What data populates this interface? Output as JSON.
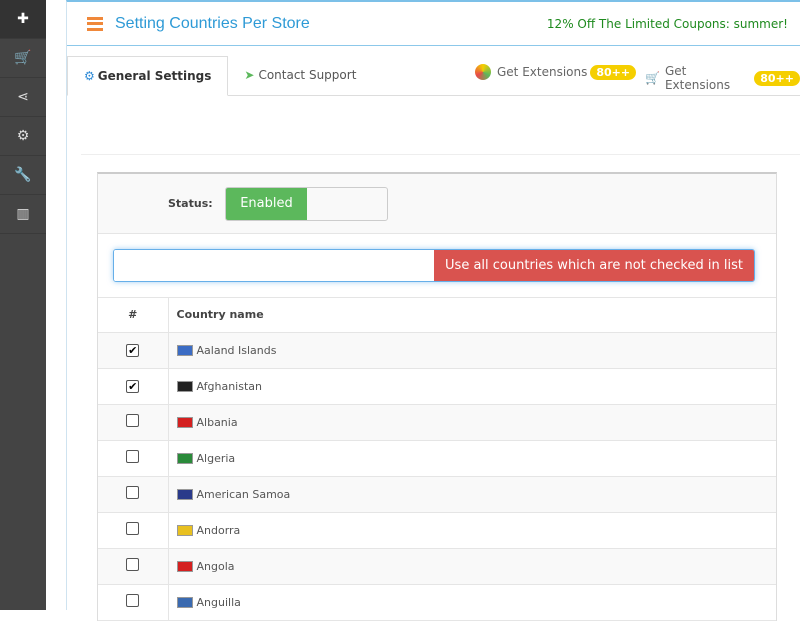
{
  "sidebar": {
    "items": [
      {
        "icon": "puzzle-icon",
        "glyph": "✚"
      },
      {
        "icon": "cart-icon",
        "glyph": "🛒"
      },
      {
        "icon": "share-icon",
        "glyph": "⋖"
      },
      {
        "icon": "gear-icon",
        "glyph": "⚙"
      },
      {
        "icon": "wrench-icon",
        "glyph": "🔧"
      },
      {
        "icon": "bar-chart-icon",
        "glyph": "▥"
      }
    ]
  },
  "header": {
    "title": "Setting Countries Per Store",
    "coupon": "12% Off The Limited Coupons: summer!"
  },
  "tabs": [
    {
      "label": "General Settings",
      "icon": "gear-icon"
    },
    {
      "label": "Contact Support",
      "icon": "paper-plane-icon"
    }
  ],
  "extensions": [
    {
      "label": "Get Extensions",
      "badge": "80++"
    },
    {
      "label": "Get Extensions",
      "badge": "80++"
    }
  ],
  "status": {
    "label": "Status:",
    "value": "Enabled"
  },
  "search": {
    "value": "",
    "button": "Use all countries which are not checked in list"
  },
  "table": {
    "headers": [
      "#",
      "Country name"
    ],
    "rows": [
      {
        "checked": true,
        "name": "Aaland Islands",
        "flag": "#3b6cc4"
      },
      {
        "checked": true,
        "name": "Afghanistan",
        "flag": "#222222"
      },
      {
        "checked": false,
        "name": "Albania",
        "flag": "#d42020"
      },
      {
        "checked": false,
        "name": "Algeria",
        "flag": "#2a8a3a"
      },
      {
        "checked": false,
        "name": "American Samoa",
        "flag": "#2a3a8a"
      },
      {
        "checked": false,
        "name": "Andorra",
        "flag": "#e8c020"
      },
      {
        "checked": false,
        "name": "Angola",
        "flag": "#d42020"
      },
      {
        "checked": false,
        "name": "Anguilla",
        "flag": "#3a6ab0"
      }
    ]
  }
}
